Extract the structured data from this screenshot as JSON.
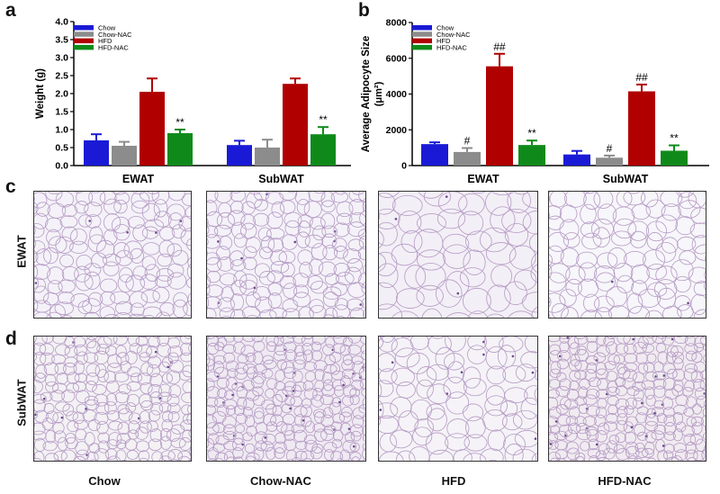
{
  "panels": {
    "a": "a",
    "b": "b",
    "c": "c",
    "d": "d"
  },
  "legend": [
    {
      "label": "Chow",
      "color": "#1a1ad6"
    },
    {
      "label": "Chow-NAC",
      "color": "#8c8c8c"
    },
    {
      "label": "HFD",
      "color": "#b00000"
    },
    {
      "label": "HFD-NAC",
      "color": "#0f8a1a"
    }
  ],
  "chart_data": [
    {
      "type": "bar",
      "categories": [
        "EWAT",
        "SubWAT"
      ],
      "ylabel": "Weight (g)",
      "ylim": [
        0,
        4.0
      ],
      "yticks": [
        "0.0",
        "0.5",
        "1.0",
        "1.5",
        "2.0",
        "2.5",
        "3.0",
        "3.5",
        "4.0"
      ],
      "series": [
        {
          "name": "Chow",
          "values": [
            0.7,
            0.57
          ],
          "errors": [
            0.17,
            0.12
          ],
          "marks": [
            "",
            ""
          ]
        },
        {
          "name": "Chow-NAC",
          "values": [
            0.55,
            0.5
          ],
          "errors": [
            0.11,
            0.22
          ],
          "marks": [
            "",
            ""
          ]
        },
        {
          "name": "HFD",
          "values": [
            2.05,
            2.27
          ],
          "errors": [
            0.37,
            0.15
          ],
          "marks": [
            "",
            ""
          ]
        },
        {
          "name": "HFD-NAC",
          "values": [
            0.9,
            0.87
          ],
          "errors": [
            0.1,
            0.2
          ],
          "marks": [
            "**",
            "**"
          ]
        }
      ]
    },
    {
      "type": "bar",
      "categories": [
        "EWAT",
        "SubWAT"
      ],
      "ylabel": "Average Adipocyte Size",
      "ylabel2": "(μm²)",
      "ylim": [
        0,
        8000
      ],
      "yticks": [
        "0",
        "2000",
        "4000",
        "6000",
        "8000"
      ],
      "series": [
        {
          "name": "Chow",
          "values": [
            1200,
            620
          ],
          "errors": [
            100,
            200
          ],
          "marks": [
            "",
            ""
          ]
        },
        {
          "name": "Chow-NAC",
          "values": [
            760,
            440
          ],
          "errors": [
            220,
            120
          ],
          "marks": [
            "#",
            "#"
          ]
        },
        {
          "name": "HFD",
          "values": [
            5550,
            4150
          ],
          "errors": [
            700,
            380
          ],
          "marks": [
            "##",
            "##"
          ]
        },
        {
          "name": "HFD-NAC",
          "values": [
            1150,
            830
          ],
          "errors": [
            250,
            300
          ],
          "marks": [
            "**",
            "**"
          ]
        }
      ]
    }
  ],
  "rows": [
    {
      "label": "EWAT"
    },
    {
      "label": "SubWAT"
    }
  ],
  "columns": [
    "Chow",
    "Chow-NAC",
    "HFD",
    "HFD-NAC"
  ]
}
